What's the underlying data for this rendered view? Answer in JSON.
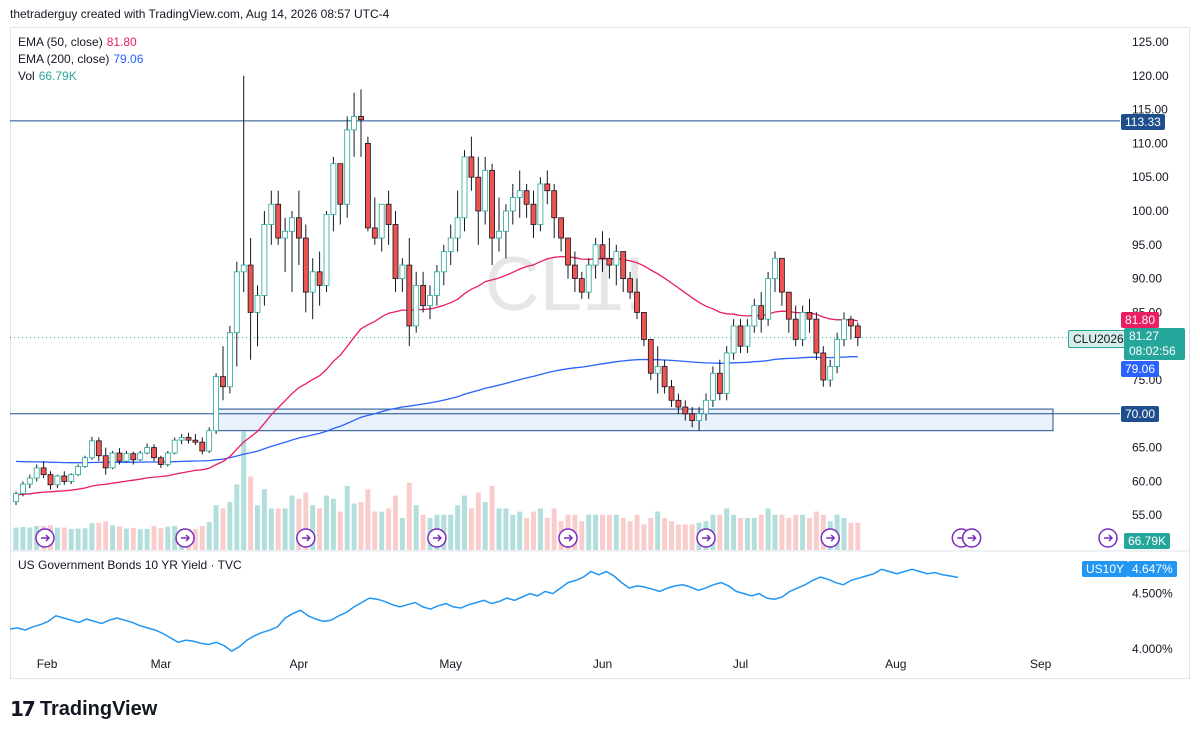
{
  "credit": "thetraderguy created with TradingView.com, Aug 14, 2026 08:57 UTC-4",
  "brand": {
    "mark": "17",
    "name": "TradingView"
  },
  "watermark": "CL1!",
  "legend": {
    "ema50": {
      "label": "EMA (50, close)",
      "value": "81.80",
      "color": "#e91e63"
    },
    "ema200": {
      "label": "EMA (200, close)",
      "value": "79.06",
      "color": "#2962ff"
    },
    "vol": {
      "label": "Vol",
      "value": "66.79K",
      "color": "#26a69a"
    }
  },
  "price_tags": {
    "level_high": "113.33",
    "level_low": "70.00",
    "ema50": "81.80",
    "symbol": "CLU2026",
    "last": "81.27",
    "countdown": "08:02:56",
    "ema200": "79.06",
    "vol": "66.79K"
  },
  "pane2": {
    "title": "US Government Bonds 10 YR Yield · TVC",
    "symbol": "US10Y",
    "value": "4.647%",
    "ticks": [
      "4.500%",
      "4.000%"
    ]
  },
  "colors": {
    "up": "#26a69a",
    "down": "#ef5350",
    "ema50": "#e91e63",
    "ema200": "#2962ff",
    "level": "#1e4e8c",
    "zone": "#e3edfb",
    "yield": "#2196f3"
  },
  "chart_data": [
    {
      "type": "candlestick",
      "symbol": "CL1!",
      "ylim": [
        50,
        127
      ],
      "y_ticks": [
        "125.00",
        "120.00",
        "115.00",
        "110.00",
        "105.00",
        "100.00",
        "95.00",
        "90.00",
        "85.00",
        "75.00",
        "65.00",
        "60.00",
        "55.00"
      ],
      "x_ticks": [
        "Feb",
        "Mar",
        "Apr",
        "May",
        "Jun",
        "Jul",
        "Aug",
        "Sep"
      ],
      "horizontal_levels": [
        113.33,
        70.0
      ],
      "support_zone": [
        67.5,
        70.7
      ],
      "ohlc_daily": [
        [
          57,
          58.5,
          56.5,
          58.2
        ],
        [
          58.2,
          60,
          57.8,
          59.6
        ],
        [
          59.6,
          61,
          59,
          60.5
        ],
        [
          60.5,
          62.5,
          60,
          62
        ],
        [
          62,
          63,
          60.5,
          61
        ],
        [
          61,
          61.5,
          58.8,
          59.5
        ],
        [
          59.5,
          61,
          59,
          60.8
        ],
        [
          60.8,
          61.5,
          59.5,
          60
        ],
        [
          60,
          61.2,
          59.6,
          61
        ],
        [
          61,
          62.5,
          60.8,
          62.2
        ],
        [
          62.2,
          63.8,
          62,
          63.5
        ],
        [
          63.5,
          66.6,
          63.2,
          66
        ],
        [
          66,
          66.5,
          63,
          63.8
        ],
        [
          63.8,
          65,
          61,
          62
        ],
        [
          62,
          64.5,
          61.8,
          64.2
        ],
        [
          64.2,
          64.9,
          62.5,
          63
        ],
        [
          63,
          64.5,
          62.8,
          64.1
        ],
        [
          64.1,
          64.4,
          62.5,
          63.2
        ],
        [
          63.2,
          64.5,
          63,
          64.2
        ],
        [
          64.2,
          65.6,
          64,
          65
        ],
        [
          65,
          65.5,
          63,
          63.5
        ],
        [
          63.5,
          63.8,
          62,
          62.5
        ],
        [
          62.5,
          64.5,
          62.2,
          64.2
        ],
        [
          64.2,
          66.5,
          64,
          66.1
        ],
        [
          66.1,
          67,
          65.5,
          66.5
        ],
        [
          66.5,
          67.2,
          65.6,
          66.1
        ],
        [
          66.1,
          67,
          65.4,
          65.8
        ],
        [
          65.8,
          66.5,
          64,
          64.5
        ],
        [
          64.5,
          68,
          64.2,
          67.5
        ],
        [
          67.5,
          76,
          67,
          75.5
        ],
        [
          75.5,
          80,
          72,
          74
        ],
        [
          74,
          83,
          73,
          82
        ],
        [
          82,
          92.5,
          77,
          91
        ],
        [
          91,
          120,
          88,
          92
        ],
        [
          92,
          96,
          78,
          85
        ],
        [
          85,
          89,
          80,
          87.5
        ],
        [
          87.5,
          100,
          86,
          98
        ],
        [
          98,
          103,
          95,
          101
        ],
        [
          101,
          103,
          95,
          96
        ],
        [
          96,
          99,
          91,
          97
        ],
        [
          97,
          100,
          88,
          99
        ],
        [
          99,
          103,
          92,
          96
        ],
        [
          96,
          98,
          85,
          88
        ],
        [
          88,
          93,
          84,
          91
        ],
        [
          91,
          94,
          86,
          89
        ],
        [
          89,
          100,
          88,
          99.5
        ],
        [
          99.5,
          108,
          97,
          107
        ],
        [
          107,
          105,
          98,
          101
        ],
        [
          101,
          114,
          99,
          112
        ],
        [
          112,
          117.5,
          108,
          114
        ],
        [
          114,
          118,
          108,
          113.5
        ],
        [
          110,
          111,
          97,
          97.5
        ],
        [
          97.5,
          102,
          95,
          96
        ],
        [
          96,
          101,
          94,
          101
        ],
        [
          101,
          103,
          95,
          98
        ],
        [
          98,
          100,
          88,
          90
        ],
        [
          90,
          93,
          88,
          92
        ],
        [
          92,
          96,
          80,
          83
        ],
        [
          83,
          91,
          82,
          89
        ],
        [
          89,
          91,
          85,
          86
        ],
        [
          86,
          89,
          84,
          87.5
        ],
        [
          87.5,
          92,
          86,
          91
        ],
        [
          91,
          95,
          89,
          94
        ],
        [
          94,
          98,
          92,
          96
        ],
        [
          96,
          103,
          94,
          99
        ],
        [
          99,
          109,
          97,
          108
        ],
        [
          108,
          111,
          103,
          105
        ],
        [
          105,
          108,
          95,
          100
        ],
        [
          100,
          108,
          98,
          106
        ],
        [
          106,
          107,
          92,
          96
        ],
        [
          96,
          102,
          94,
          97
        ],
        [
          97,
          101,
          93,
          100
        ],
        [
          100,
          104,
          98,
          102
        ],
        [
          102,
          106,
          99,
          103
        ],
        [
          103,
          104,
          99,
          101
        ],
        [
          101,
          103,
          96,
          98
        ],
        [
          98,
          105,
          97,
          104
        ],
        [
          104,
          106,
          101,
          103
        ],
        [
          103,
          104,
          96,
          99
        ],
        [
          99,
          98,
          94,
          96
        ],
        [
          96,
          96,
          90,
          92
        ],
        [
          92,
          94,
          88,
          90
        ],
        [
          90,
          91,
          87,
          88
        ],
        [
          88,
          93,
          87,
          92
        ],
        [
          92,
          96,
          90,
          95
        ],
        [
          95,
          97,
          91,
          93
        ],
        [
          93,
          96,
          90,
          92
        ],
        [
          92,
          95,
          89,
          94
        ],
        [
          94,
          93,
          88,
          90
        ],
        [
          90,
          91,
          87,
          88
        ],
        [
          88,
          90,
          84,
          85
        ],
        [
          85,
          83,
          80,
          81
        ],
        [
          81,
          80,
          75,
          76
        ],
        [
          76,
          80,
          73,
          77
        ],
        [
          77,
          78,
          73,
          74
        ],
        [
          74,
          75,
          71,
          72
        ],
        [
          72,
          73,
          70,
          71
        ],
        [
          71,
          72,
          69,
          70
        ],
        [
          70,
          71,
          68,
          69
        ],
        [
          69,
          71,
          67.5,
          70
        ],
        [
          70,
          73,
          69,
          72
        ],
        [
          72,
          77,
          71,
          76
        ],
        [
          76,
          78,
          72,
          73
        ],
        [
          73,
          80,
          72,
          79
        ],
        [
          79,
          84,
          78,
          83
        ],
        [
          83,
          84,
          79,
          80
        ],
        [
          80,
          84,
          79,
          83
        ],
        [
          83,
          87,
          82,
          86
        ],
        [
          86,
          88,
          82,
          84
        ],
        [
          84,
          91,
          83,
          90
        ],
        [
          90,
          94,
          88,
          93
        ],
        [
          93,
          92,
          86,
          88
        ],
        [
          88,
          87,
          82,
          84
        ],
        [
          84,
          86,
          80,
          81
        ],
        [
          81,
          86,
          80,
          85
        ],
        [
          85,
          87,
          82,
          84
        ],
        [
          84,
          85,
          78,
          79
        ],
        [
          79,
          80,
          74,
          75
        ],
        [
          75,
          78,
          74,
          77
        ],
        [
          77,
          82,
          76,
          81
        ],
        [
          81,
          85,
          80,
          84
        ],
        [
          84,
          84.5,
          81,
          83
        ],
        [
          83,
          83.5,
          80,
          81.27
        ]
      ]
    },
    {
      "type": "line",
      "title": "US Government Bonds 10 YR Yield · TVC",
      "ylim": [
        3.9,
        4.75
      ],
      "y_ticks": [
        "4.500%",
        "4.000%"
      ],
      "values": [
        4.18,
        4.19,
        4.17,
        4.2,
        4.22,
        4.25,
        4.3,
        4.28,
        4.26,
        4.24,
        4.27,
        4.25,
        4.23,
        4.26,
        4.28,
        4.26,
        4.24,
        4.21,
        4.19,
        4.17,
        4.14,
        4.1,
        4.06,
        4.08,
        4.07,
        4.05,
        4.04,
        4.06,
        4.03,
        3.98,
        4.02,
        4.08,
        4.12,
        4.15,
        4.17,
        4.2,
        4.28,
        4.32,
        4.35,
        4.3,
        4.27,
        4.25,
        4.26,
        4.3,
        4.33,
        4.38,
        4.42,
        4.46,
        4.45,
        4.43,
        4.4,
        4.38,
        4.4,
        4.42,
        4.38,
        4.36,
        4.39,
        4.41,
        4.38,
        4.37,
        4.4,
        4.42,
        4.44,
        4.41,
        4.43,
        4.46,
        4.44,
        4.47,
        4.5,
        4.48,
        4.52,
        4.5,
        4.55,
        4.6,
        4.62,
        4.65,
        4.7,
        4.67,
        4.7,
        4.66,
        4.6,
        4.55,
        4.57,
        4.56,
        4.54,
        4.52,
        4.55,
        4.57,
        4.58,
        4.56,
        4.53,
        4.55,
        4.58,
        4.6,
        4.57,
        4.52,
        4.5,
        4.48,
        4.5,
        4.46,
        4.45,
        4.47,
        4.52,
        4.55,
        4.58,
        4.62,
        4.65,
        4.63,
        4.6,
        4.58,
        4.62,
        4.64,
        4.66,
        4.68,
        4.72,
        4.7,
        4.68,
        4.7,
        4.72,
        4.7,
        4.68,
        4.69,
        4.67,
        4.66,
        4.647
      ]
    }
  ]
}
